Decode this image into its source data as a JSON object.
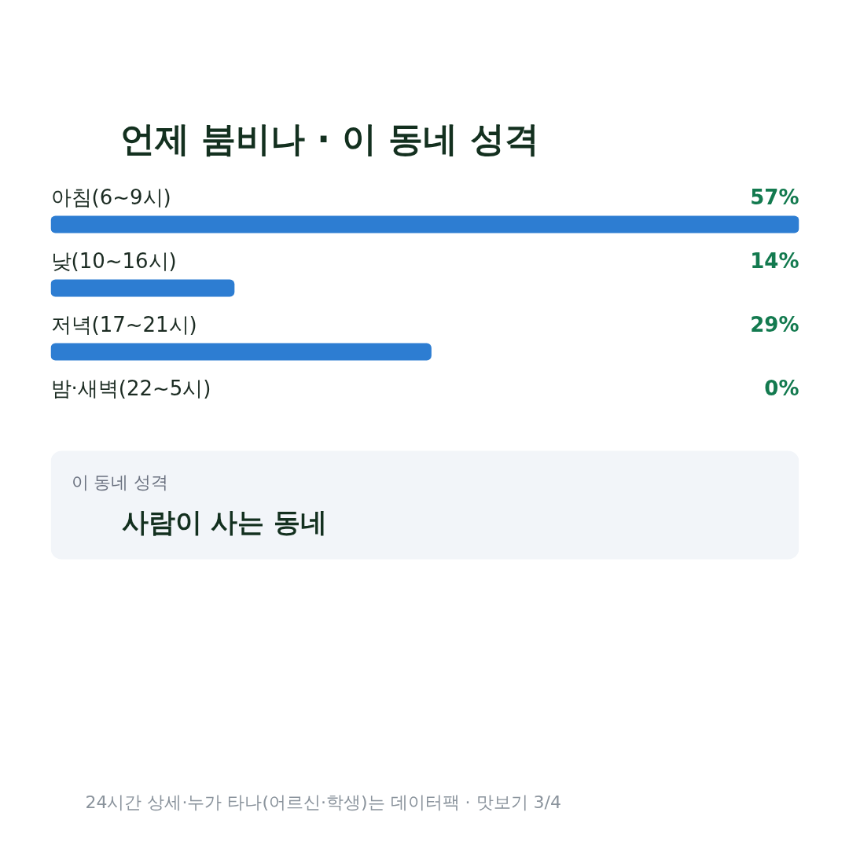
{
  "chart_data": {
    "type": "bar",
    "orientation": "horizontal",
    "title": "언제 붐비나 · 이 동네 성격",
    "categories": [
      "아침(6~9시)",
      "낮(10~16시)",
      "저녁(17~21시)",
      "밤·새벽(22~5시)"
    ],
    "values": [
      57,
      14,
      29,
      0
    ],
    "value_labels": [
      "57%",
      "14%",
      "29%",
      "0%"
    ],
    "color": "#2d7dd2",
    "annotations": [
      "이 동네 성격",
      "사람이 사는 동네",
      "24시간 상세·누가 타나(어르신·학생)는 데이터팩 · 맛보기 3/4"
    ]
  }
}
